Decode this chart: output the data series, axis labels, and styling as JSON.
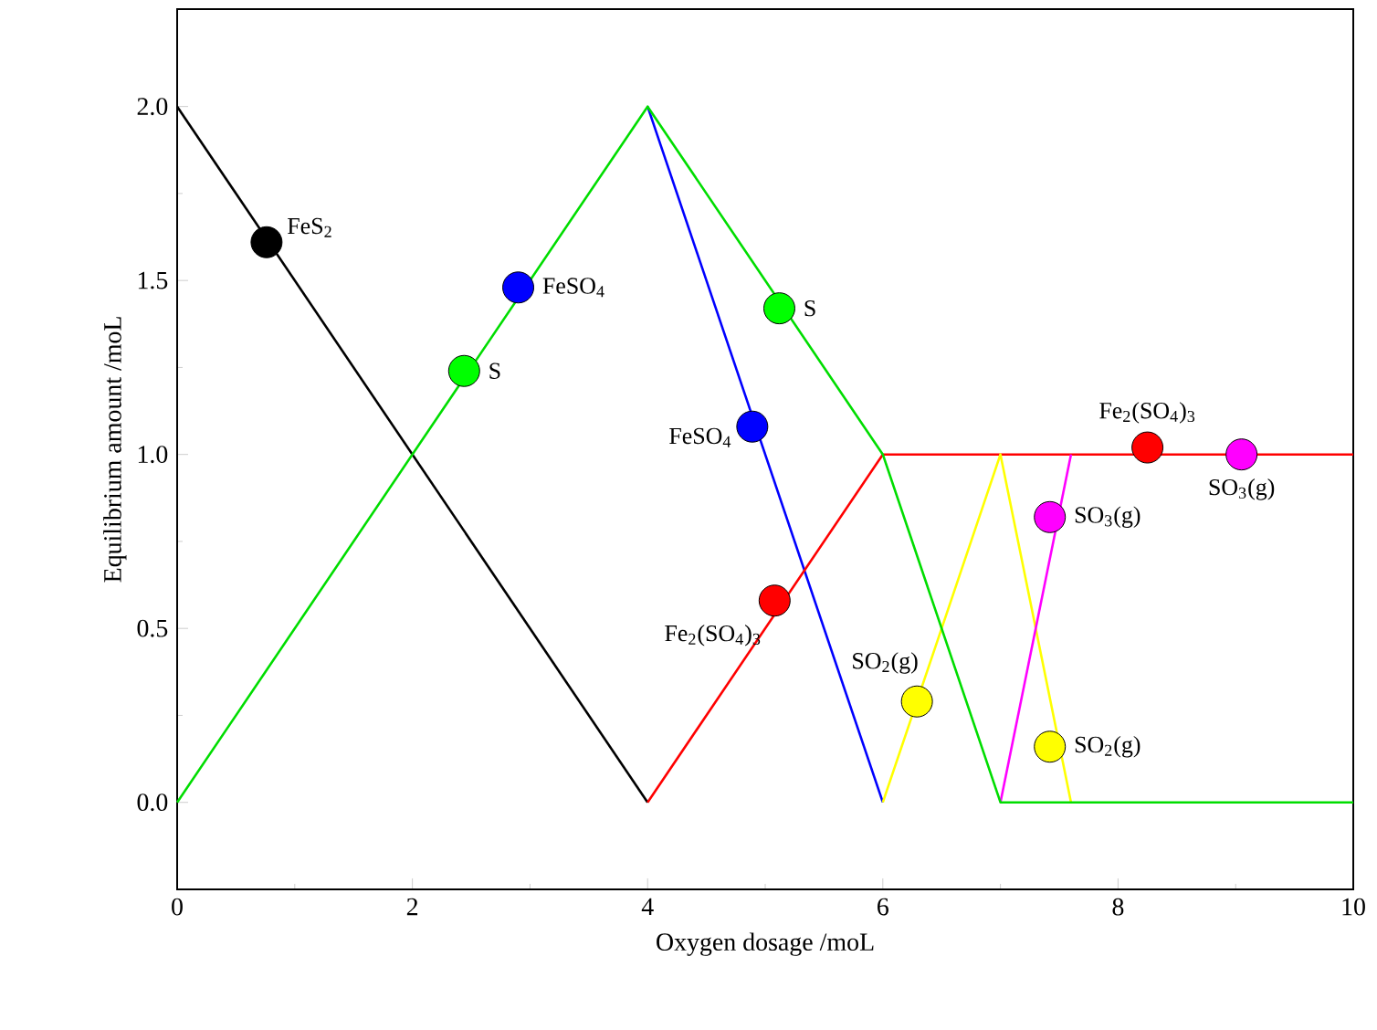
{
  "chart_data": {
    "type": "line",
    "xlabel": "Oxygen dosage /moL",
    "ylabel": "Equilibrium amount /moL",
    "xlim": [
      0,
      10
    ],
    "ylim": [
      -0.25,
      2.28
    ],
    "xticks": [
      0,
      2,
      4,
      6,
      8,
      10
    ],
    "yticks": [
      {
        "value": 0,
        "label": "0.0"
      },
      0.5,
      {
        "value": 1,
        "label": "1.0"
      },
      1.5,
      {
        "value": 2,
        "label": "2.0"
      }
    ],
    "series": [
      {
        "color": "#000000",
        "x": [
          0,
          4
        ],
        "values": [
          2,
          0
        ]
      },
      {
        "color": "#0000ff",
        "x": [
          4,
          6
        ],
        "values": [
          2,
          0
        ]
      },
      {
        "color": "#ff0000",
        "x": [
          4,
          6,
          10
        ],
        "values": [
          0,
          1,
          1
        ]
      },
      {
        "color": "#ffff00",
        "x": [
          6,
          7,
          7.6
        ],
        "values": [
          0,
          1,
          0
        ]
      },
      {
        "color": "#ff00ff",
        "x": [
          7,
          7.6
        ],
        "values": [
          0,
          1
        ]
      },
      {
        "color": "#00dd00",
        "x": [
          0,
          4,
          6,
          7,
          10
        ],
        "values": [
          0,
          2,
          1,
          0,
          0
        ]
      },
      {
        "type": "scatter",
        "marker": "circle",
        "color": "#000000",
        "x": [
          0.76
        ],
        "values": [
          1.61
        ]
      },
      {
        "type": "scatter",
        "marker": "circle",
        "color": "#0000ff",
        "x": [
          2.9,
          4.89
        ],
        "values": [
          1.48,
          1.08
        ]
      },
      {
        "type": "scatter",
        "marker": "circle",
        "color": "#00ff00",
        "x": [
          2.44,
          5.12
        ],
        "values": [
          1.24,
          1.42
        ]
      },
      {
        "type": "scatter",
        "marker": "circle",
        "color": "#ff0000",
        "x": [
          5.08,
          8.25
        ],
        "values": [
          0.58,
          1.02
        ]
      },
      {
        "type": "scatter",
        "marker": "circle",
        "color": "#ffff00",
        "x": [
          6.29,
          7.42
        ],
        "values": [
          0.29,
          0.16
        ]
      },
      {
        "type": "scatter",
        "marker": "circle",
        "color": "#ff00ff",
        "x": [
          7.42,
          9.05
        ],
        "values": [
          0.82,
          1.0
        ]
      }
    ],
    "annotations": [
      {
        "text": "FeS$_{2}$",
        "x": 0.76,
        "y": 1.61
      },
      {
        "text": "FeSO$_{4}$",
        "x": 2.9,
        "y": 1.48
      },
      {
        "text": "S",
        "x": 2.44,
        "y": 1.24
      },
      {
        "text": "S",
        "x": 5.12,
        "y": 1.42
      },
      {
        "text": "FeSO$_{4}$",
        "x": 4.89,
        "y": 1.08
      },
      {
        "text": "Fe$_{2}$(SO$_{4}$)$_{3}$",
        "x": 5.08,
        "y": 0.58
      },
      {
        "text": "Fe$_{2}$(SO$_{4}$)$_{3}$",
        "x": 8.25,
        "y": 1.02
      },
      {
        "text": "SO$_{2}$(g)",
        "x": 6.29,
        "y": 0.29
      },
      {
        "text": "SO$_{2}$(g)",
        "x": 7.42,
        "y": 0.16
      },
      {
        "text": "SO$_{3}$(g)",
        "x": 7.42,
        "y": 0.82
      },
      {
        "text": "SO$_{3}$(g)",
        "x": 9.05,
        "y": 1.0
      }
    ]
  }
}
